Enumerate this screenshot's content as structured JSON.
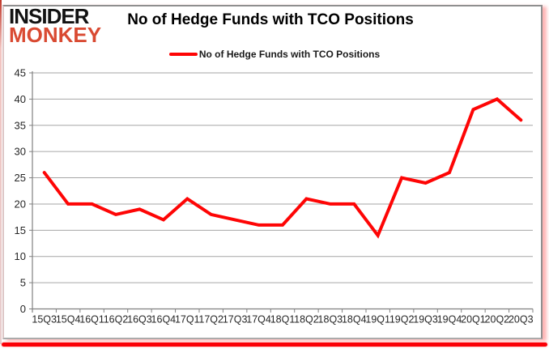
{
  "brand": {
    "line1": "INSIDER",
    "line2": "MONKEY"
  },
  "title": "No of Hedge Funds with TCO Positions",
  "legend": {
    "label": "No of Hedge Funds with TCO Positions"
  },
  "colors": {
    "series_line": "#fe0505",
    "brand_black": "#121212",
    "brand_red": "#d94a32",
    "grid": "#a6a6a6",
    "axis": "#808080",
    "tick_label": "#262626",
    "accent_bar": "#fb0007"
  },
  "chart_data": {
    "type": "line",
    "title": "No of Hedge Funds with TCO Positions",
    "categories": [
      "15Q3",
      "15Q4",
      "16Q1",
      "16Q2",
      "16Q3",
      "16Q4",
      "17Q1",
      "17Q2",
      "17Q3",
      "17Q4",
      "18Q1",
      "18Q2",
      "18Q3",
      "18Q4",
      "19Q1",
      "19Q2",
      "19Q3",
      "19Q4",
      "20Q1",
      "20Q2",
      "20Q3"
    ],
    "series": [
      {
        "name": "No of Hedge Funds with TCO Positions",
        "color": "#fe0505",
        "values": [
          26,
          20,
          20,
          18,
          19,
          17,
          21,
          18,
          17,
          16,
          16,
          21,
          20,
          20,
          14,
          25,
          24,
          26,
          38,
          40,
          36
        ]
      }
    ],
    "xlabel": "",
    "ylabel": "",
    "ylim": [
      0,
      45
    ],
    "ytick_step": 5,
    "grid": true,
    "legend_position": "top-center"
  }
}
